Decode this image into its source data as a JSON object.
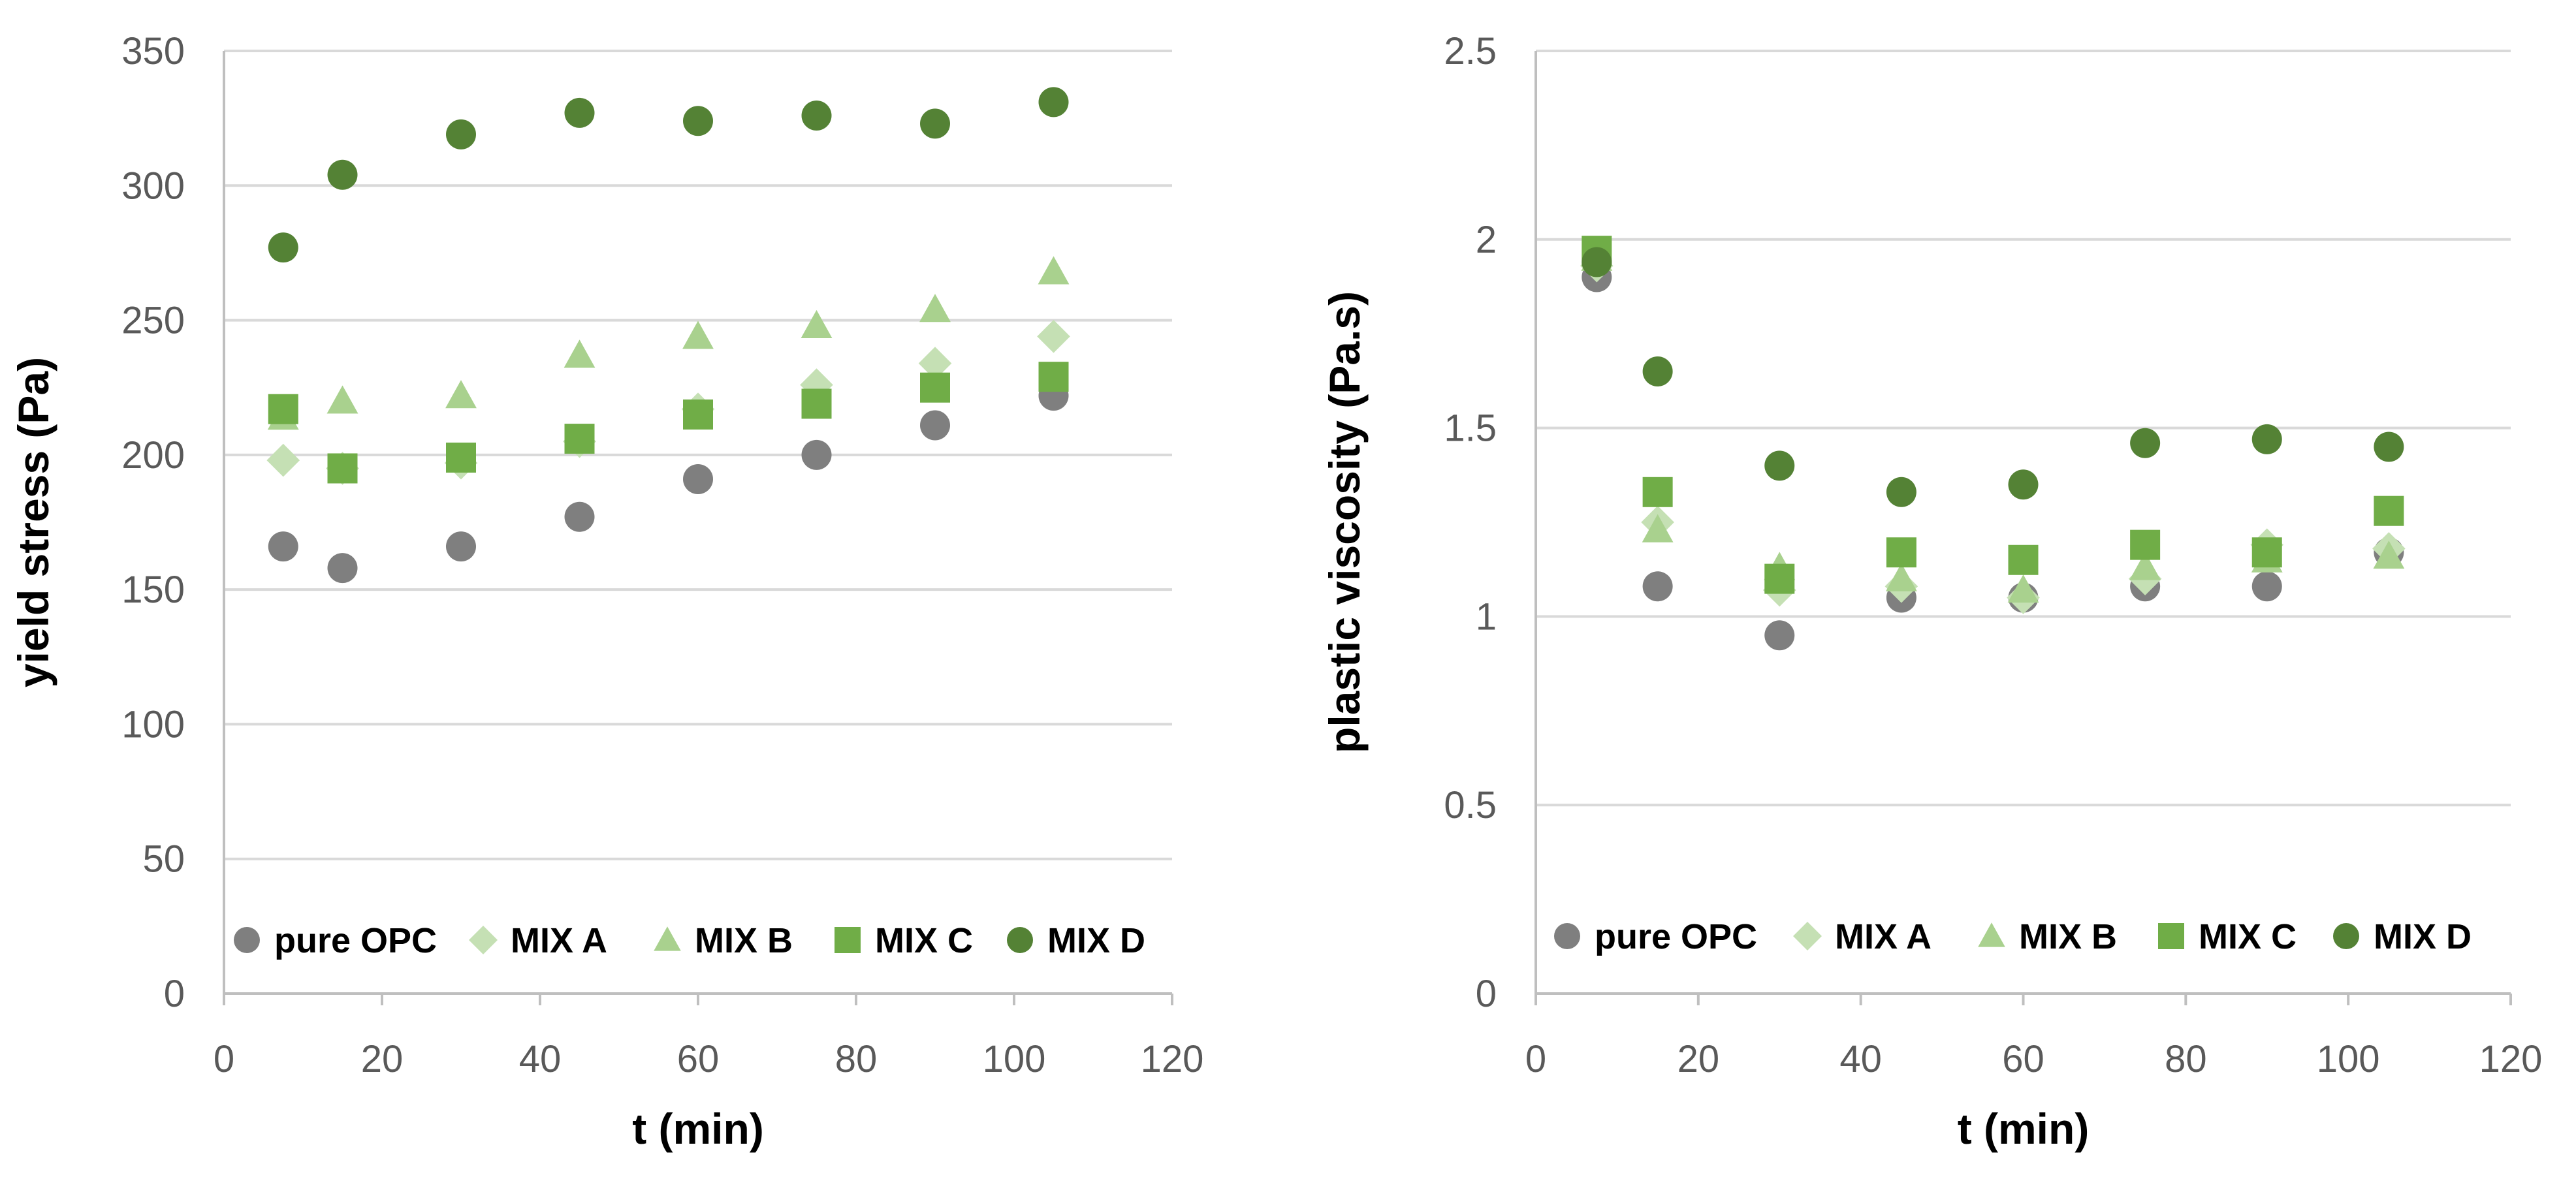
{
  "colors": {
    "pure_opc": "#7f7f7f",
    "mix_a": "#c5e0b4",
    "mix_b": "#a9d18e",
    "mix_c": "#70ad47",
    "mix_d": "#548235",
    "grid": "#d9d9d9",
    "axis": "#bfbfbf"
  },
  "chart_data": [
    {
      "type": "scatter",
      "xlabel": "t (min)",
      "ylabel": "yield stress (Pa)",
      "xlim": [
        0,
        120
      ],
      "ylim": [
        0,
        350
      ],
      "xticks": [
        0,
        20,
        40,
        60,
        80,
        100,
        120
      ],
      "yticks": [
        0,
        50,
        100,
        150,
        200,
        250,
        300,
        350
      ],
      "legend_position": "bottom-inside",
      "series": [
        {
          "name": "pure OPC",
          "marker": "circle",
          "color_key": "pure_opc",
          "points": [
            [
              7.5,
              166
            ],
            [
              15,
              158
            ],
            [
              30,
              166
            ],
            [
              45,
              177
            ],
            [
              60,
              191
            ],
            [
              75,
              200
            ],
            [
              90,
              211
            ],
            [
              105,
              222
            ]
          ]
        },
        {
          "name": "MIX A",
          "marker": "diamond",
          "color_key": "mix_a",
          "points": [
            [
              7.5,
              198
            ],
            [
              15,
              195
            ],
            [
              30,
              197
            ],
            [
              45,
              205
            ],
            [
              60,
              217
            ],
            [
              75,
              226
            ],
            [
              90,
              234
            ],
            [
              105,
              244
            ]
          ]
        },
        {
          "name": "MIX B",
          "marker": "triangle",
          "color_key": "mix_b",
          "points": [
            [
              7.5,
              214
            ],
            [
              15,
              220
            ],
            [
              30,
              222
            ],
            [
              45,
              237
            ],
            [
              60,
              244
            ],
            [
              75,
              248
            ],
            [
              90,
              254
            ],
            [
              105,
              268
            ]
          ]
        },
        {
          "name": "MIX C",
          "marker": "square",
          "color_key": "mix_c",
          "points": [
            [
              7.5,
              217
            ],
            [
              15,
              195
            ],
            [
              30,
              199
            ],
            [
              45,
              206
            ],
            [
              60,
              215
            ],
            [
              75,
              219
            ],
            [
              90,
              225
            ],
            [
              105,
              229
            ]
          ]
        },
        {
          "name": "MIX D",
          "marker": "circle",
          "color_key": "mix_d",
          "points": [
            [
              7.5,
              277
            ],
            [
              15,
              304
            ],
            [
              30,
              319
            ],
            [
              45,
              327
            ],
            [
              60,
              324
            ],
            [
              75,
              326
            ],
            [
              90,
              323
            ],
            [
              105,
              331
            ]
          ]
        }
      ]
    },
    {
      "type": "scatter",
      "xlabel": "t (min)",
      "ylabel": "plastic viscosity (Pa.s)",
      "xlim": [
        0,
        120
      ],
      "ylim": [
        0,
        2.5
      ],
      "xticks": [
        0,
        20,
        40,
        60,
        80,
        100,
        120
      ],
      "yticks": [
        0,
        0.5,
        1,
        1.5,
        2,
        2.5
      ],
      "legend_position": "bottom-inside",
      "series": [
        {
          "name": "pure OPC",
          "marker": "circle",
          "color_key": "pure_opc",
          "points": [
            [
              7.5,
              1.9
            ],
            [
              15,
              1.08
            ],
            [
              30,
              0.95
            ],
            [
              45,
              1.05
            ],
            [
              60,
              1.05
            ],
            [
              75,
              1.08
            ],
            [
              90,
              1.08
            ],
            [
              105,
              1.17
            ]
          ]
        },
        {
          "name": "MIX A",
          "marker": "diamond",
          "color_key": "mix_a",
          "points": [
            [
              7.5,
              1.93
            ],
            [
              15,
              1.25
            ],
            [
              30,
              1.07
            ],
            [
              45,
              1.08
            ],
            [
              60,
              1.05
            ],
            [
              75,
              1.1
            ],
            [
              90,
              1.19
            ],
            [
              105,
              1.18
            ]
          ]
        },
        {
          "name": "MIX B",
          "marker": "triangle",
          "color_key": "mix_b",
          "points": [
            [
              7.5,
              1.95
            ],
            [
              15,
              1.23
            ],
            [
              30,
              1.13
            ],
            [
              45,
              1.1
            ],
            [
              60,
              1.07
            ],
            [
              75,
              1.13
            ],
            [
              90,
              1.15
            ],
            [
              105,
              1.16
            ]
          ]
        },
        {
          "name": "MIX C",
          "marker": "square",
          "color_key": "mix_c",
          "points": [
            [
              7.5,
              1.97
            ],
            [
              15,
              1.33
            ],
            [
              30,
              1.1
            ],
            [
              45,
              1.17
            ],
            [
              60,
              1.15
            ],
            [
              75,
              1.19
            ],
            [
              90,
              1.17
            ],
            [
              105,
              1.28
            ]
          ]
        },
        {
          "name": "MIX D",
          "marker": "circle",
          "color_key": "mix_d",
          "points": [
            [
              7.5,
              1.94
            ],
            [
              15,
              1.65
            ],
            [
              30,
              1.4
            ],
            [
              45,
              1.33
            ],
            [
              60,
              1.35
            ],
            [
              75,
              1.46
            ],
            [
              90,
              1.47
            ],
            [
              105,
              1.45
            ]
          ]
        }
      ]
    }
  ]
}
